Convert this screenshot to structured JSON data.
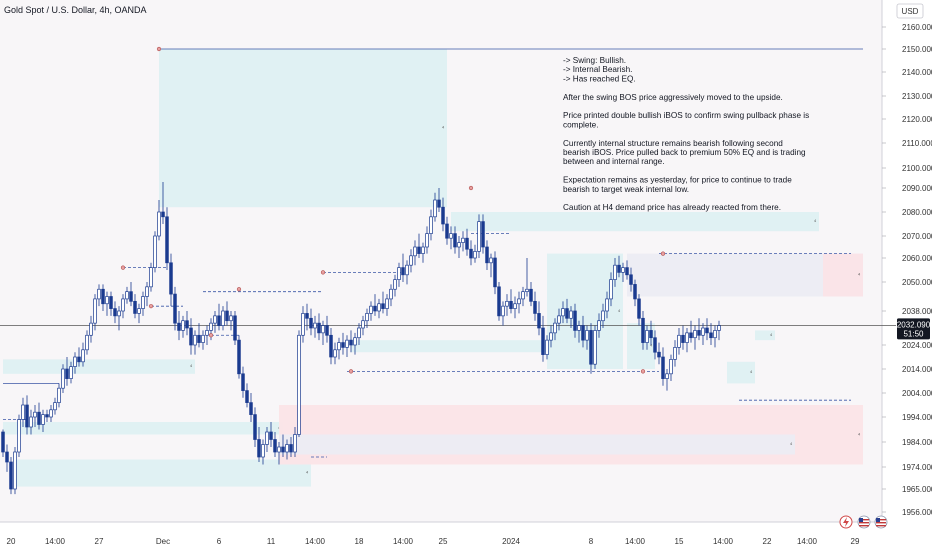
{
  "header": {
    "title": "Gold Spot / U.S. Dollar, 4h, OANDA",
    "currency": "USD"
  },
  "notes": [
    "-> Swing: Bullish.",
    "-> Internal Bearish.",
    "-> Has reached EQ.",
    "",
    "After the swing BOS price aggressively moved to the upside.",
    "",
    "Price printed double bullish iBOS to confirm swing pullback phase is",
    "complete.",
    "",
    "Currently internal structure remains bearish following second",
    "bearish iBOS.  Price pulled back to premium 50% EQ and is trading",
    "between and internal range.",
    "",
    "Expectation remains as yesterday, for price to continue to trade",
    "bearish to target weak internal low.",
    "",
    "Caution at H4 demand price has already reacted from there."
  ],
  "price_tag": {
    "price": "2032.090",
    "countdown": "51:50"
  },
  "colors": {
    "up": "#ffffff",
    "down": "#1a3a8f",
    "demand_zone": "#def0f2",
    "supply_zone": "#fbe4e7",
    "premium_zone": "#ececf3",
    "structure_line": "#3a56a6",
    "current_price_line": "#555555"
  },
  "chart_data": {
    "type": "candlestick",
    "title": "Gold Spot / U.S. Dollar, 4h, OANDA",
    "ylabel": "USD",
    "ylim": [
      1951,
      2166
    ],
    "yticks": [
      1956,
      1965,
      1974,
      1984,
      1994,
      2004,
      2014,
      2024,
      2038,
      2050,
      2060,
      2070,
      2080,
      2090,
      2100,
      2110,
      2120,
      2130,
      2140,
      2150,
      2160
    ],
    "ytick_labels": [
      "1956.000",
      "1965.000",
      "1974.000",
      "1984.000",
      "1994.000",
      "2004.000",
      "2014.000",
      "2024.000",
      "2038.000",
      "2050.000",
      "2060.000",
      "2070.000",
      "2080.000",
      "2090.000",
      "2100.000",
      "2110.000",
      "2120.000",
      "2130.000",
      "2140.000",
      "2150.000",
      "2160.000"
    ],
    "xticks": [
      {
        "label": "20",
        "bar": 1
      },
      {
        "label": "14:00",
        "bar": 12
      },
      {
        "label": "27",
        "bar": 23
      },
      {
        "label": "Dec",
        "bar": 39
      },
      {
        "label": "6",
        "bar": 53
      },
      {
        "label": "11",
        "bar": 66
      },
      {
        "label": "14:00",
        "bar": 77
      },
      {
        "label": "18",
        "bar": 88
      },
      {
        "label": "14:00",
        "bar": 99
      },
      {
        "label": "25",
        "bar": 109
      },
      {
        "label": "2024",
        "bar": 126
      },
      {
        "label": "8",
        "bar": 146
      },
      {
        "label": "14:00",
        "bar": 157
      },
      {
        "label": "15",
        "bar": 168
      },
      {
        "label": "14:00",
        "bar": 179
      },
      {
        "label": "22",
        "bar": 190
      },
      {
        "label": "14:00",
        "bar": 200
      },
      {
        "label": "29",
        "bar": 212
      }
    ],
    "candles": [
      [
        1988,
        1989,
        1978,
        1980
      ],
      [
        1980,
        1983,
        1972,
        1976
      ],
      [
        1976,
        1978,
        1963,
        1965
      ],
      [
        1965,
        1982,
        1963,
        1980
      ],
      [
        1980,
        1995,
        1978,
        1993
      ],
      [
        1993,
        2002,
        1990,
        1999
      ],
      [
        1999,
        2003,
        1987,
        1990
      ],
      [
        1990,
        1997,
        1987,
        1994
      ],
      [
        1994,
        1999,
        1990,
        1996
      ],
      [
        1996,
        2000,
        1989,
        1991
      ],
      [
        1991,
        1997,
        1988,
        1995
      ],
      [
        1995,
        1997,
        1992,
        1994
      ],
      [
        1994,
        1999,
        1992,
        1997
      ],
      [
        1997,
        2002,
        1995,
        2000
      ],
      [
        2000,
        2008,
        1998,
        2006
      ],
      [
        2006,
        2016,
        2004,
        2014
      ],
      [
        2014,
        2019,
        2007,
        2010
      ],
      [
        2010,
        2017,
        2008,
        2015
      ],
      [
        2015,
        2021,
        2012,
        2019
      ],
      [
        2019,
        2023,
        2015,
        2017
      ],
      [
        2017,
        2025,
        2015,
        2022
      ],
      [
        2022,
        2030,
        2020,
        2028
      ],
      [
        2028,
        2036,
        2025,
        2033
      ],
      [
        2033,
        2045,
        2030,
        2043
      ],
      [
        2043,
        2049,
        2040,
        2047
      ],
      [
        2047,
        2049,
        2038,
        2041
      ],
      [
        2041,
        2046,
        2036,
        2044
      ],
      [
        2044,
        2046,
        2036,
        2039
      ],
      [
        2039,
        2042,
        2033,
        2036
      ],
      [
        2036,
        2040,
        2030,
        2038
      ],
      [
        2038,
        2045,
        2035,
        2043
      ],
      [
        2043,
        2048,
        2041,
        2046
      ],
      [
        2046,
        2050,
        2040,
        2042
      ],
      [
        2042,
        2045,
        2035,
        2037
      ],
      [
        2037,
        2041,
        2033,
        2039
      ],
      [
        2039,
        2046,
        2036,
        2044
      ],
      [
        2044,
        2050,
        2040,
        2048
      ],
      [
        2048,
        2058,
        2046,
        2056
      ],
      [
        2056,
        2072,
        2054,
        2070
      ],
      [
        2070,
        2085,
        2068,
        2080
      ],
      [
        2080,
        2093,
        2075,
        2078
      ],
      [
        2078,
        2082,
        2055,
        2058
      ],
      [
        2058,
        2062,
        2040,
        2045
      ],
      [
        2045,
        2048,
        2030,
        2033
      ],
      [
        2033,
        2038,
        2026,
        2030
      ],
      [
        2030,
        2036,
        2027,
        2034
      ],
      [
        2034,
        2038,
        2028,
        2031
      ],
      [
        2031,
        2035,
        2020,
        2024
      ],
      [
        2024,
        2030,
        2020,
        2028
      ],
      [
        2028,
        2033,
        2023,
        2025
      ],
      [
        2025,
        2030,
        2022,
        2028
      ],
      [
        2028,
        2032,
        2024,
        2030
      ],
      [
        2030,
        2035,
        2026,
        2033
      ],
      [
        2033,
        2038,
        2029,
        2036
      ],
      [
        2036,
        2041,
        2030,
        2032
      ],
      [
        2032,
        2040,
        2030,
        2038
      ],
      [
        2038,
        2042,
        2032,
        2034
      ],
      [
        2034,
        2038,
        2030,
        2036
      ],
      [
        2036,
        2038,
        2024,
        2026
      ],
      [
        2026,
        2028,
        2010,
        2012
      ],
      [
        2012,
        2015,
        2002,
        2005
      ],
      [
        2005,
        2008,
        1998,
        2000
      ],
      [
        2000,
        2004,
        1992,
        1995
      ],
      [
        1995,
        1998,
        1982,
        1985
      ],
      [
        1985,
        1990,
        1976,
        1978
      ],
      [
        1978,
        1985,
        1975,
        1983
      ],
      [
        1983,
        1990,
        1980,
        1988
      ],
      [
        1988,
        1992,
        1982,
        1985
      ],
      [
        1985,
        1988,
        1978,
        1980
      ],
      [
        1980,
        1984,
        1975,
        1982
      ],
      [
        1982,
        1987,
        1978,
        1980
      ],
      [
        1980,
        1985,
        1977,
        1983
      ],
      [
        1983,
        1986,
        1978,
        1980
      ],
      [
        1980,
        1990,
        1978,
        1987
      ],
      [
        1987,
        2030,
        1986,
        2028
      ],
      [
        2028,
        2040,
        2025,
        2037
      ],
      [
        2037,
        2041,
        2030,
        2035
      ],
      [
        2035,
        2039,
        2028,
        2031
      ],
      [
        2031,
        2036,
        2027,
        2033
      ],
      [
        2033,
        2037,
        2026,
        2029
      ],
      [
        2029,
        2034,
        2024,
        2032
      ],
      [
        2032,
        2036,
        2025,
        2028
      ],
      [
        2028,
        2031,
        2016,
        2019
      ],
      [
        2019,
        2025,
        2016,
        2022
      ],
      [
        2022,
        2027,
        2018,
        2025
      ],
      [
        2025,
        2029,
        2020,
        2023
      ],
      [
        2023,
        2028,
        2019,
        2026
      ],
      [
        2026,
        2030,
        2021,
        2024
      ],
      [
        2024,
        2029,
        2020,
        2027
      ],
      [
        2027,
        2033,
        2024,
        2031
      ],
      [
        2031,
        2036,
        2028,
        2034
      ],
      [
        2034,
        2039,
        2031,
        2037
      ],
      [
        2037,
        2042,
        2034,
        2040
      ],
      [
        2040,
        2045,
        2036,
        2038
      ],
      [
        2038,
        2043,
        2035,
        2041
      ],
      [
        2041,
        2046,
        2037,
        2039
      ],
      [
        2039,
        2045,
        2036,
        2043
      ],
      [
        2043,
        2049,
        2040,
        2047
      ],
      [
        2047,
        2053,
        2044,
        2051
      ],
      [
        2051,
        2058,
        2048,
        2056
      ],
      [
        2056,
        2062,
        2050,
        2053
      ],
      [
        2053,
        2059,
        2049,
        2057
      ],
      [
        2057,
        2064,
        2054,
        2061
      ],
      [
        2061,
        2068,
        2057,
        2065
      ],
      [
        2065,
        2071,
        2060,
        2062
      ],
      [
        2062,
        2067,
        2058,
        2065
      ],
      [
        2065,
        2074,
        2062,
        2071
      ],
      [
        2071,
        2081,
        2068,
        2078
      ],
      [
        2078,
        2088,
        2076,
        2085
      ],
      [
        2085,
        2090,
        2080,
        2082
      ],
      [
        2082,
        2086,
        2072,
        2075
      ],
      [
        2075,
        2078,
        2066,
        2069
      ],
      [
        2069,
        2074,
        2064,
        2071
      ],
      [
        2071,
        2074,
        2062,
        2065
      ],
      [
        2065,
        2070,
        2060,
        2067
      ],
      [
        2067,
        2072,
        2063,
        2069
      ],
      [
        2069,
        2073,
        2061,
        2064
      ],
      [
        2064,
        2068,
        2057,
        2060
      ],
      [
        2060,
        2066,
        2058,
        2063
      ],
      [
        2063,
        2079,
        2060,
        2076
      ],
      [
        2076,
        2079,
        2062,
        2065
      ],
      [
        2065,
        2068,
        2055,
        2058
      ],
      [
        2058,
        2062,
        2052,
        2060
      ],
      [
        2060,
        2063,
        2045,
        2048
      ],
      [
        2048,
        2050,
        2034,
        2036
      ],
      [
        2036,
        2042,
        2032,
        2040
      ],
      [
        2040,
        2045,
        2036,
        2042
      ],
      [
        2042,
        2047,
        2037,
        2039
      ],
      [
        2039,
        2044,
        2035,
        2041
      ],
      [
        2041,
        2046,
        2037,
        2043
      ],
      [
        2043,
        2048,
        2040,
        2046
      ],
      [
        2046,
        2060,
        2044,
        2047
      ],
      [
        2047,
        2050,
        2040,
        2042
      ],
      [
        2042,
        2046,
        2034,
        2037
      ],
      [
        2037,
        2042,
        2028,
        2031
      ],
      [
        2031,
        2036,
        2017,
        2020
      ],
      [
        2020,
        2028,
        2018,
        2026
      ],
      [
        2026,
        2032,
        2023,
        2029
      ],
      [
        2029,
        2035,
        2026,
        2033
      ],
      [
        2033,
        2039,
        2030,
        2036
      ],
      [
        2036,
        2042,
        2033,
        2039
      ],
      [
        2039,
        2043,
        2033,
        2035
      ],
      [
        2035,
        2040,
        2031,
        2038
      ],
      [
        2038,
        2041,
        2027,
        2030
      ],
      [
        2030,
        2034,
        2025,
        2032
      ],
      [
        2032,
        2036,
        2023,
        2026
      ],
      [
        2026,
        2032,
        2022,
        2030
      ],
      [
        2030,
        2033,
        2012,
        2016
      ],
      [
        2016,
        2032,
        2014,
        2030
      ],
      [
        2030,
        2037,
        2027,
        2034
      ],
      [
        2034,
        2041,
        2031,
        2038
      ],
      [
        2038,
        2046,
        2035,
        2043
      ],
      [
        2043,
        2054,
        2040,
        2051
      ],
      [
        2051,
        2060,
        2048,
        2057
      ],
      [
        2057,
        2061,
        2052,
        2054
      ],
      [
        2054,
        2058,
        2050,
        2056
      ],
      [
        2056,
        2059,
        2051,
        2053
      ],
      [
        2053,
        2056,
        2046,
        2049
      ],
      [
        2049,
        2051,
        2040,
        2043
      ],
      [
        2043,
        2045,
        2032,
        2035
      ],
      [
        2035,
        2038,
        2022,
        2025
      ],
      [
        2025,
        2032,
        2022,
        2030
      ],
      [
        2030,
        2034,
        2024,
        2027
      ],
      [
        2027,
        2030,
        2018,
        2021
      ],
      [
        2021,
        2025,
        2016,
        2019
      ],
      [
        2019,
        2023,
        2007,
        2010
      ],
      [
        2010,
        2014,
        2005,
        2012
      ],
      [
        2012,
        2020,
        2009,
        2018
      ],
      [
        2018,
        2026,
        2015,
        2023
      ],
      [
        2023,
        2031,
        2020,
        2028
      ],
      [
        2028,
        2032,
        2022,
        2025
      ],
      [
        2025,
        2031,
        2021,
        2029
      ],
      [
        2029,
        2034,
        2025,
        2027
      ],
      [
        2027,
        2032,
        2022,
        2030
      ],
      [
        2030,
        2035,
        2026,
        2028
      ],
      [
        2028,
        2033,
        2024,
        2031
      ],
      [
        2031,
        2035,
        2026,
        2029
      ],
      [
        2029,
        2033,
        2024,
        2027
      ],
      [
        2027,
        2032,
        2023,
        2030
      ],
      [
        2030,
        2034,
        2026,
        2032
      ]
    ],
    "zones": [
      {
        "kind": "demand",
        "from_bar": 39,
        "to_bar": 111,
        "low": 2082,
        "high": 2150
      },
      {
        "kind": "demand",
        "from_bar": 112,
        "to_bar": 204,
        "low": 2072,
        "high": 2080
      },
      {
        "kind": "demand",
        "from_bar": 136,
        "to_bar": 155,
        "low": 2014,
        "high": 2062
      },
      {
        "kind": "premium",
        "from_bar": 156,
        "to_bar": 215,
        "low": 2044,
        "high": 2062
      },
      {
        "kind": "supply",
        "from_bar": 205,
        "to_bar": 215,
        "low": 2044,
        "high": 2062
      },
      {
        "kind": "demand",
        "from_bar": 87,
        "to_bar": 136,
        "low": 2021,
        "high": 2026
      },
      {
        "kind": "demand",
        "from_bar": 156,
        "to_bar": 163,
        "low": 2014,
        "high": 2033
      },
      {
        "kind": "demand",
        "from_bar": 181,
        "to_bar": 188,
        "low": 2008,
        "high": 2017
      },
      {
        "kind": "demand",
        "from_bar": 188,
        "to_bar": 193,
        "low": 2026,
        "high": 2030
      },
      {
        "kind": "demand",
        "from_bar": 0,
        "to_bar": 48,
        "low": 2012,
        "high": 2018
      },
      {
        "kind": "demand",
        "from_bar": 0,
        "to_bar": 70,
        "low": 1987,
        "high": 1992
      },
      {
        "kind": "demand",
        "from_bar": 3,
        "to_bar": 77,
        "low": 1966,
        "high": 1977
      },
      {
        "kind": "supply",
        "from_bar": 69,
        "to_bar": 215,
        "low": 1975,
        "high": 1999
      },
      {
        "kind": "premium",
        "from_bar": 69,
        "to_bar": 198,
        "low": 1979,
        "high": 1987
      }
    ],
    "structure_lines": [
      {
        "from_bar": 39,
        "to_bar": 215,
        "price": 2150,
        "style": "solid"
      },
      {
        "from_bar": 0,
        "to_bar": 14,
        "price": 2008,
        "style": "solid"
      },
      {
        "from_bar": 0,
        "to_bar": 6,
        "price": 1993,
        "style": "dashed"
      },
      {
        "from_bar": 30,
        "to_bar": 41,
        "price": 2056,
        "style": "dashed"
      },
      {
        "from_bar": 37,
        "to_bar": 45,
        "price": 2040,
        "style": "dashed"
      },
      {
        "from_bar": 50,
        "to_bar": 80,
        "price": 2046,
        "style": "dashed"
      },
      {
        "from_bar": 52,
        "to_bar": 59,
        "price": 2028,
        "style": "dashed"
      },
      {
        "from_bar": 80,
        "to_bar": 100,
        "price": 2054,
        "style": "dashed"
      },
      {
        "from_bar": 86,
        "to_bar": 164,
        "price": 2013,
        "style": "dashed"
      },
      {
        "from_bar": 117,
        "to_bar": 127,
        "price": 2071,
        "style": "dashed"
      },
      {
        "from_bar": 164,
        "to_bar": 212,
        "price": 2062,
        "style": "dashed"
      },
      {
        "from_bar": 184,
        "to_bar": 212,
        "price": 2001,
        "style": "dashed"
      },
      {
        "from_bar": 77,
        "to_bar": 81,
        "price": 1978,
        "style": "dashed"
      }
    ],
    "markers": [
      {
        "bar": 39,
        "price": 2150
      },
      {
        "bar": 30,
        "price": 2056
      },
      {
        "bar": 37,
        "price": 2040
      },
      {
        "bar": 52,
        "price": 2028
      },
      {
        "bar": 59,
        "price": 2047
      },
      {
        "bar": 80,
        "price": 2054
      },
      {
        "bar": 87,
        "price": 2013
      },
      {
        "bar": 117,
        "price": 2090
      },
      {
        "bar": 165,
        "price": 2062
      },
      {
        "bar": 160,
        "price": 2013
      }
    ],
    "current_price": 2032.09
  }
}
